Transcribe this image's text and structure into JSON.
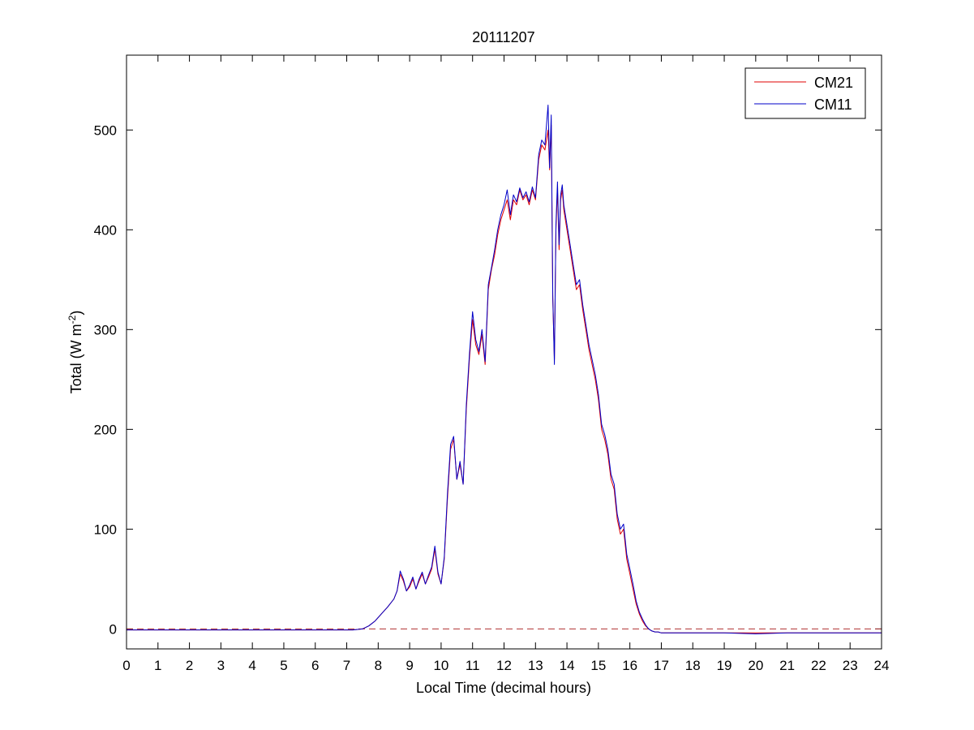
{
  "chart_data": {
    "type": "line",
    "title": "20111207",
    "xlabel": "Local Time (decimal hours)",
    "ylabel_main": "Total (W m",
    "ylabel_sup": "-2",
    "ylabel_end": ")",
    "xlim": [
      0,
      24
    ],
    "ylim": [
      -20,
      575
    ],
    "xticks": [
      0,
      1,
      2,
      3,
      4,
      5,
      6,
      7,
      8,
      9,
      10,
      11,
      12,
      13,
      14,
      15,
      16,
      17,
      18,
      19,
      20,
      21,
      22,
      23,
      24
    ],
    "yticks": [
      0,
      100,
      200,
      300,
      400,
      500
    ],
    "grid": false,
    "legend_position": "top-right",
    "reference_line": {
      "y": 0,
      "style": "dashed",
      "color": "#b03030"
    },
    "x": [
      0,
      1,
      2,
      3,
      4,
      5,
      6,
      7,
      7.2,
      7.5,
      7.7,
      7.9,
      8.1,
      8.3,
      8.5,
      8.6,
      8.7,
      8.8,
      8.9,
      9.0,
      9.1,
      9.2,
      9.3,
      9.4,
      9.5,
      9.6,
      9.7,
      9.8,
      9.9,
      10.0,
      10.1,
      10.2,
      10.3,
      10.4,
      10.5,
      10.6,
      10.7,
      10.8,
      10.9,
      11.0,
      11.1,
      11.2,
      11.3,
      11.4,
      11.5,
      11.6,
      11.7,
      11.8,
      11.9,
      12.0,
      12.1,
      12.2,
      12.3,
      12.4,
      12.5,
      12.6,
      12.7,
      12.8,
      12.9,
      13.0,
      13.1,
      13.2,
      13.3,
      13.4,
      13.45,
      13.5,
      13.55,
      13.6,
      13.65,
      13.7,
      13.75,
      13.8,
      13.85,
      13.9,
      14.0,
      14.1,
      14.2,
      14.3,
      14.4,
      14.5,
      14.6,
      14.7,
      14.8,
      14.9,
      15.0,
      15.1,
      15.2,
      15.3,
      15.4,
      15.5,
      15.6,
      15.7,
      15.8,
      15.9,
      16.0,
      16.1,
      16.2,
      16.3,
      16.4,
      16.5,
      16.6,
      16.7,
      16.8,
      16.9,
      17.0,
      17.5,
      18,
      19,
      20,
      21,
      22,
      23,
      24
    ],
    "series": [
      {
        "name": "CM21",
        "color": "#e00000",
        "values": [
          -1,
          -1,
          -1,
          -1,
          -1,
          -1,
          -1,
          -1,
          -1,
          0,
          3,
          8,
          15,
          22,
          30,
          38,
          55,
          48,
          38,
          42,
          50,
          40,
          48,
          55,
          45,
          52,
          60,
          80,
          55,
          45,
          70,
          130,
          180,
          190,
          150,
          165,
          145,
          220,
          270,
          310,
          285,
          275,
          295,
          265,
          340,
          360,
          375,
          395,
          410,
          420,
          430,
          410,
          430,
          425,
          440,
          430,
          435,
          425,
          440,
          430,
          470,
          485,
          480,
          500,
          460,
          505,
          330,
          270,
          400,
          440,
          380,
          430,
          440,
          420,
          400,
          380,
          360,
          340,
          345,
          320,
          300,
          280,
          265,
          250,
          230,
          200,
          190,
          175,
          150,
          140,
          110,
          95,
          100,
          70,
          55,
          40,
          25,
          15,
          8,
          3,
          0,
          -2,
          -3,
          -3,
          -4,
          -4,
          -4,
          -4,
          -4,
          -4,
          -4,
          -4,
          -4
        ],
        "xref": "x"
      },
      {
        "name": "CM11",
        "color": "#0000c8",
        "values": [
          -1,
          -1,
          -1,
          -1,
          -1,
          -1,
          -1,
          -1,
          -1,
          0,
          3,
          8,
          15,
          22,
          30,
          38,
          58,
          50,
          38,
          44,
          52,
          40,
          50,
          57,
          45,
          54,
          62,
          83,
          57,
          45,
          72,
          135,
          185,
          193,
          150,
          168,
          145,
          225,
          275,
          318,
          290,
          278,
          300,
          268,
          345,
          362,
          380,
          400,
          415,
          425,
          440,
          415,
          435,
          428,
          442,
          432,
          438,
          428,
          443,
          432,
          475,
          490,
          485,
          525,
          462,
          515,
          335,
          265,
          405,
          448,
          385,
          435,
          445,
          425,
          405,
          385,
          365,
          345,
          350,
          325,
          305,
          285,
          270,
          255,
          235,
          205,
          195,
          180,
          155,
          145,
          115,
          100,
          105,
          75,
          60,
          45,
          28,
          17,
          10,
          4,
          0,
          -2,
          -3,
          -3,
          -4,
          -4,
          -4,
          -4,
          -5,
          -4,
          -4,
          -4,
          -4
        ],
        "xref": "x"
      }
    ]
  }
}
